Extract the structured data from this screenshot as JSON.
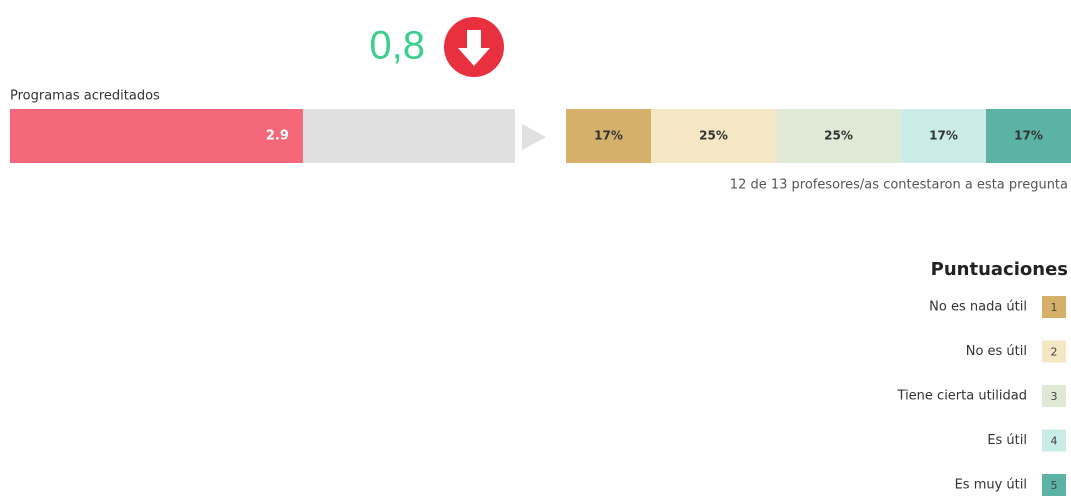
{
  "delta": "0,8",
  "chart_data": [
    {
      "type": "bar",
      "title": "Programas acreditados",
      "values": [
        2.9
      ],
      "xlim": [
        0,
        5
      ],
      "color": "#f4687a",
      "track_color": "#e0e0e0"
    },
    {
      "type": "stacked-bar",
      "legend_title": "Puntuaciones",
      "note": "12 de 13 profesores/as contestaron a esta pregunta",
      "series": [
        {
          "name": "No es nada útil",
          "key": "1",
          "color": "#d4b06a",
          "values": [
            17
          ],
          "value_labels": [
            "17%"
          ]
        },
        {
          "name": "No es útil",
          "key": "2",
          "color": "#f5e6c4",
          "values": [
            25
          ],
          "value_labels": [
            "25%"
          ]
        },
        {
          "name": "Tiene cierta utilidad",
          "key": "3",
          "color": "#e0e8d6",
          "values": [
            25
          ],
          "value_labels": [
            "25%"
          ]
        },
        {
          "name": "Es útil",
          "key": "4",
          "color": "#c9ece6",
          "values": [
            17
          ],
          "value_labels": [
            "17%"
          ]
        },
        {
          "name": "Es muy útil",
          "key": "5",
          "color": "#5bb3a5",
          "values": [
            17
          ],
          "value_labels": [
            "17%"
          ]
        }
      ]
    }
  ]
}
